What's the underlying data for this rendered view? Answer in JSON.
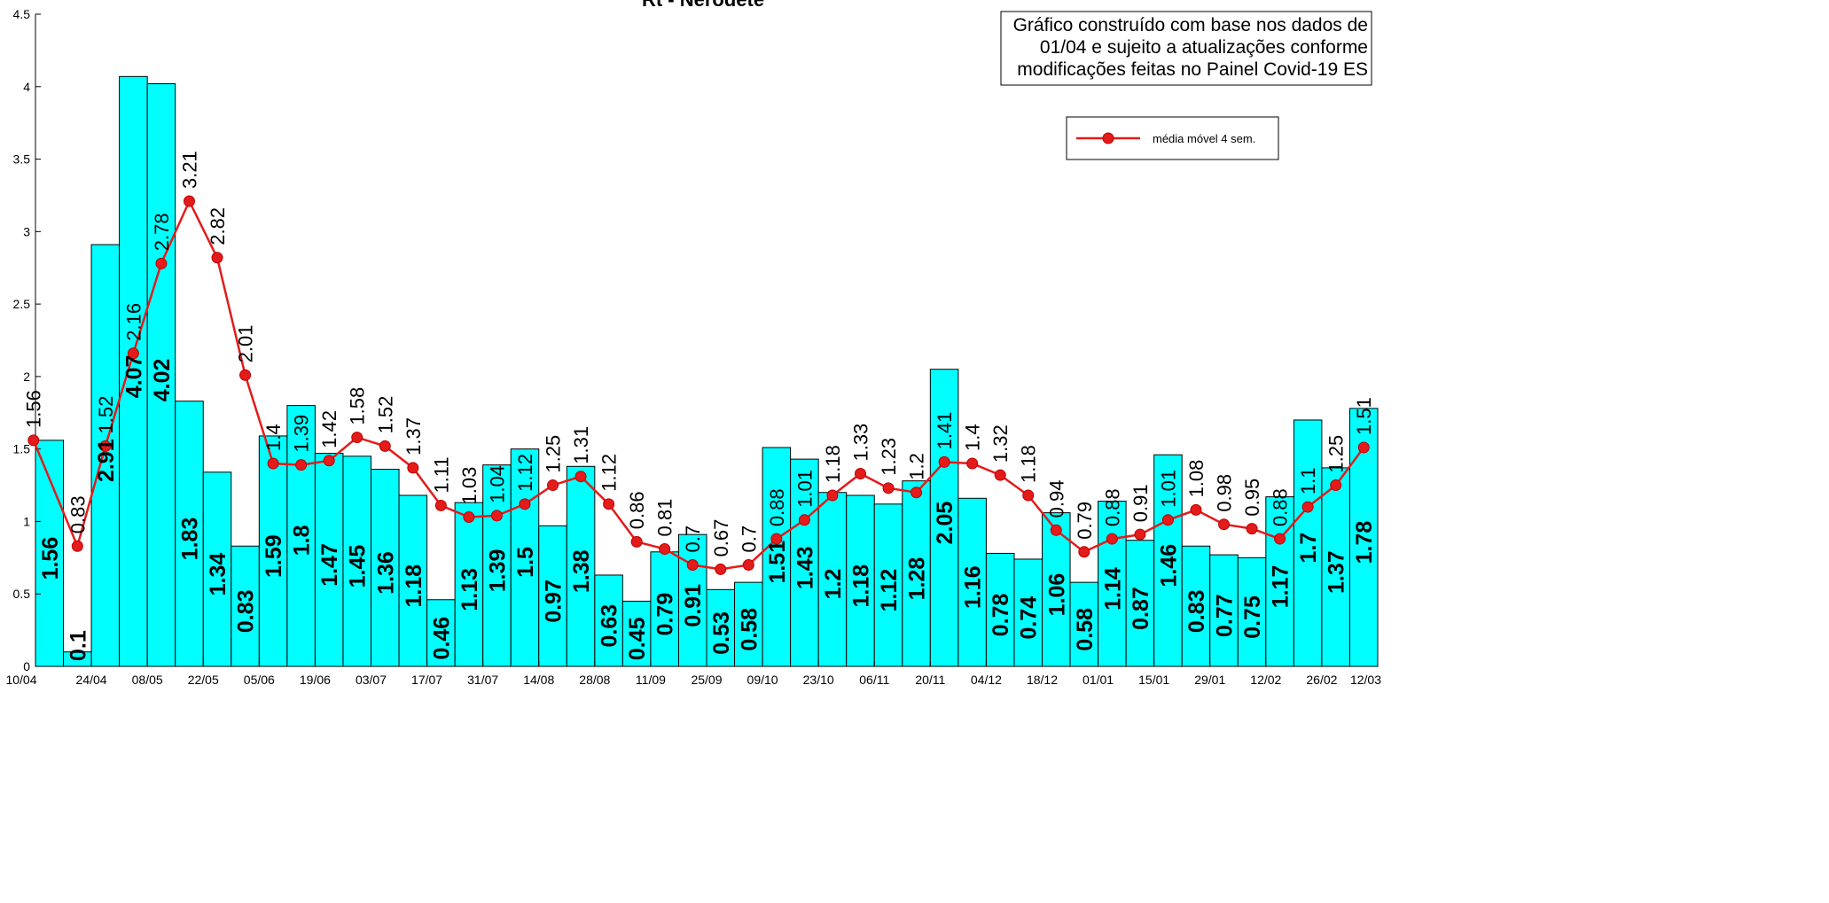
{
  "chart_data": {
    "type": "bar",
    "title": "Rt - Nerodete",
    "xlabel": "",
    "ylabel": "",
    "ylim": [
      0,
      4.5
    ],
    "yticks": [
      "0",
      "0.5",
      "1",
      "1.5",
      "2",
      "2.5",
      "3",
      "3.5",
      "4",
      "4.5"
    ],
    "xtick_labels": [
      "10/04",
      "24/04",
      "08/05",
      "22/05",
      "05/06",
      "19/06",
      "03/07",
      "17/07",
      "31/07",
      "14/08",
      "28/08",
      "11/09",
      "25/09",
      "09/10",
      "23/10",
      "06/11",
      "20/11",
      "04/12",
      "18/12",
      "01/01",
      "15/01",
      "29/01",
      "12/02",
      "26/02",
      "12/03"
    ],
    "series": [
      {
        "kind": "bar",
        "color": "#00ffff",
        "values": [
          1.56,
          0.1,
          2.91,
          4.07,
          4.02,
          1.83,
          1.34,
          0.83,
          1.59,
          1.8,
          1.47,
          1.45,
          1.36,
          1.18,
          0.46,
          1.13,
          1.39,
          1.5,
          0.97,
          1.38,
          0.63,
          0.45,
          0.79,
          0.91,
          0.53,
          0.58,
          1.51,
          1.43,
          1.2,
          1.18,
          1.12,
          1.28,
          2.05,
          1.16,
          0.78,
          0.74,
          1.06,
          0.58,
          1.14,
          0.87,
          1.46,
          0.83,
          0.77,
          0.75,
          1.17,
          1.7,
          1.37,
          1.78
        ],
        "labels": [
          "1.56",
          "0.1",
          "2.91",
          "4.07",
          "4.02",
          "1.83",
          "1.34",
          "0.83",
          "1.59",
          "1.8",
          "1.47",
          "1.45",
          "1.36",
          "1.18",
          "0.46",
          "1.13",
          "1.39",
          "1.5",
          "0.97",
          "1.38",
          "0.63",
          "0.45",
          "0.79",
          "0.91",
          "0.53",
          "0.58",
          "1.51",
          "1.43",
          "1.2",
          "1.18",
          "1.12",
          "1.28",
          "2.05",
          "1.16",
          "0.78",
          "0.74",
          "1.06",
          "0.58",
          "1.14",
          "0.87",
          "1.46",
          "0.83",
          "0.77",
          "0.75",
          "1.17",
          "1.7",
          "1.37",
          "1.78"
        ]
      },
      {
        "kind": "line",
        "name": "média móvel 4 sem.",
        "color": "#e31b1b",
        "values": [
          1.56,
          0.83,
          1.52,
          2.16,
          2.78,
          3.21,
          2.82,
          2.01,
          1.4,
          1.39,
          1.42,
          1.58,
          1.52,
          1.37,
          1.11,
          1.03,
          1.04,
          1.12,
          1.25,
          1.31,
          1.12,
          0.86,
          0.81,
          0.7,
          0.67,
          0.7,
          0.88,
          1.01,
          1.18,
          1.33,
          1.23,
          1.2,
          1.41,
          1.4,
          1.32,
          1.18,
          0.94,
          0.79,
          0.88,
          0.91,
          1.01,
          1.08,
          0.98,
          0.95,
          0.88,
          1.1,
          1.25,
          1.51
        ],
        "labels": [
          "1.56",
          "0.83",
          "1.52",
          "2.16",
          "2.78",
          "3.21",
          "2.82",
          "2.01",
          "1.4",
          "1.39",
          "1.42",
          "1.58",
          "1.52",
          "1.37",
          "1.11",
          "1.03",
          "1.04",
          "1.12",
          "1.25",
          "1.31",
          "1.12",
          "0.86",
          "0.81",
          "0.7",
          "0.67",
          "0.7",
          "0.88",
          "1.01",
          "1.18",
          "1.33",
          "1.23",
          "1.2",
          "1.41",
          "1.4",
          "1.32",
          "1.18",
          "0.94",
          "0.79",
          "0.88",
          "0.91",
          "1.01",
          "1.08",
          "0.98",
          "0.95",
          "0.88",
          "1.1",
          "1.25",
          "1.51"
        ]
      }
    ],
    "legend": {
      "placement": "top-right",
      "entries": [
        "média móvel 4 sem."
      ]
    },
    "annotation": [
      "Gráfico construído com base nos dados de",
      "01/04 e sujeito a atualizações conforme",
      "modificações feitas no Painel Covid-19 ES"
    ],
    "grid": false
  }
}
